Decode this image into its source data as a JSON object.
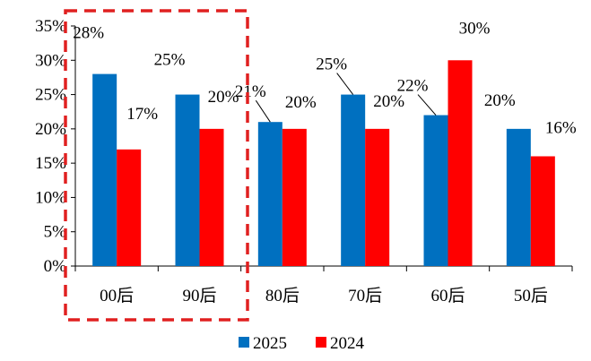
{
  "chart_data": {
    "type": "bar",
    "categories": [
      "00后",
      "90后",
      "80后",
      "70后",
      "60后",
      "50后"
    ],
    "series": [
      {
        "name": "2025",
        "values": [
          28,
          25,
          21,
          25,
          22,
          20
        ],
        "color": "#0070C0"
      },
      {
        "name": "2024",
        "values": [
          17,
          20,
          20,
          20,
          30,
          16
        ],
        "color": "#FF0000"
      }
    ],
    "data_labels": {
      "2025": [
        "28%",
        "25%",
        "21%",
        "25%",
        "22%",
        "20%"
      ],
      "2024": [
        "17%",
        "20%",
        "20%",
        "20%",
        "30%",
        "16%"
      ]
    },
    "ylim": [
      0,
      35
    ],
    "yticks": [
      "0%",
      "5%",
      "10%",
      "15%",
      "20%",
      "25%",
      "30%",
      "35%"
    ],
    "grid": false,
    "legend_position": "bottom",
    "highlight": {
      "categories": [
        "00后",
        "90后"
      ],
      "style": "dashed box",
      "color": "#E02020"
    }
  }
}
